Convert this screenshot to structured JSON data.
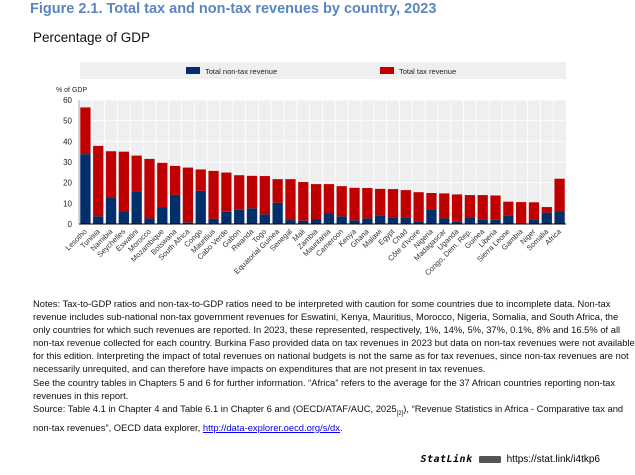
{
  "header": {
    "title": "Figure 2.1. Total tax and non-tax revenues by country, 2023",
    "subtitle": "Percentage of GDP"
  },
  "chart_data": {
    "type": "bar",
    "stacked": true,
    "ylabel": "% of GDP",
    "ylim": [
      0,
      60
    ],
    "yticks": [
      0,
      10,
      20,
      30,
      40,
      50,
      60
    ],
    "grid": true,
    "legend_placement": "top",
    "categories": [
      "Lesotho",
      "Tunisia",
      "Namibia",
      "Seychelles",
      "Eswatini",
      "Morocco",
      "Mozambique",
      "Botswana",
      "South Africa",
      "Congo",
      "Mauritius",
      "Cabo Verde",
      "Gabon",
      "Rwanda",
      "Togo",
      "Equatorial Guinea",
      "Senegal",
      "Mali",
      "Zambia",
      "Mauritania",
      "Cameroon",
      "Kenya",
      "Ghana",
      "Malawi",
      "Egypt",
      "Chad",
      "Côte d'Ivoire",
      "Nigeria",
      "Madagascar",
      "Uganda",
      "Congo, Dem. Rep.",
      "Guinea",
      "Liberia",
      "Sierra Leone",
      "Gambia",
      "Niger",
      "Somalia",
      "Africa"
    ],
    "series": [
      {
        "name": "Total non-tax revenue",
        "color": "#002f6c",
        "values": [
          33.8,
          3.7,
          13.0,
          5.8,
          15.8,
          2.7,
          8.2,
          14.1,
          0.8,
          16.1,
          2.6,
          5.9,
          6.9,
          7.6,
          4.7,
          10.3,
          1.9,
          1.6,
          2.4,
          5.3,
          3.7,
          1.8,
          2.7,
          3.9,
          3.2,
          3.2,
          1.3,
          6.8,
          2.7,
          1.1,
          2.9,
          2.1,
          2.1,
          4.2,
          0.5,
          2.3,
          5.5,
          5.8
        ]
      },
      {
        "name": "Total tax revenue",
        "color": "#c00000",
        "values": [
          22.6,
          34.1,
          22.2,
          29.2,
          17.3,
          28.8,
          21.4,
          14.0,
          26.5,
          10.3,
          23.1,
          19.0,
          16.7,
          15.7,
          18.5,
          11.4,
          19.8,
          18.7,
          16.9,
          14.0,
          14.6,
          15.7,
          14.7,
          13.1,
          13.7,
          13.2,
          14.1,
          8.2,
          12.1,
          13.2,
          11.1,
          11.9,
          11.7,
          6.6,
          10.1,
          8.2,
          2.7,
          16.1
        ]
      }
    ]
  },
  "notes": {
    "lines": [
      "Notes: Tax-to-GDP ratios and non-tax-to-GDP ratios need to be interpreted with caution for some countries due to incomplete data. Non-tax",
      "revenue includes sub-national non-tax government revenues for Eswatini, Kenya, Mauritius, Morocco, Nigeria, Somalia, and South Africa, the",
      "only countries for which such revenues are reported. In 2023, these represented, respectively, 1%, 14%, 5%, 37%, 0.1%, 8% and 16.5% of all",
      "non-tax revenue collected for each country. Burkina Faso provided data on tax revenues in 2023 but data on non-tax revenues were not available",
      "for this edition. Interpreting the impact of total revenues on national budgets is not the same as for tax revenues, since non-tax revenues are not",
      "necessarily unrequited, and can therefore have impacts on expenditures that are not present in tax revenues.",
      "See the country tables in Chapters 5 and 6 for further information. “Africa” refers to the average for the 37 African countries reporting non-tax",
      "revenues in this report."
    ],
    "source_prefix": "Source: Table 4.1 in Chapter 4 and Table 6.1 in Chapter 6 and (OECD/ATAF/AUC, 2025",
    "source_ref": "[2]",
    "source_mid": "), “Revenue Statistics in Africa - Comparative tax and",
    "source_line2": "non-tax revenues”, OECD data explorer, ",
    "source_link": "http://data-explorer.oecd.org/s/dx",
    "source_end": "."
  },
  "statlink": {
    "brand": "StatLink",
    "url": "https://stat.link/i4tkp6"
  }
}
